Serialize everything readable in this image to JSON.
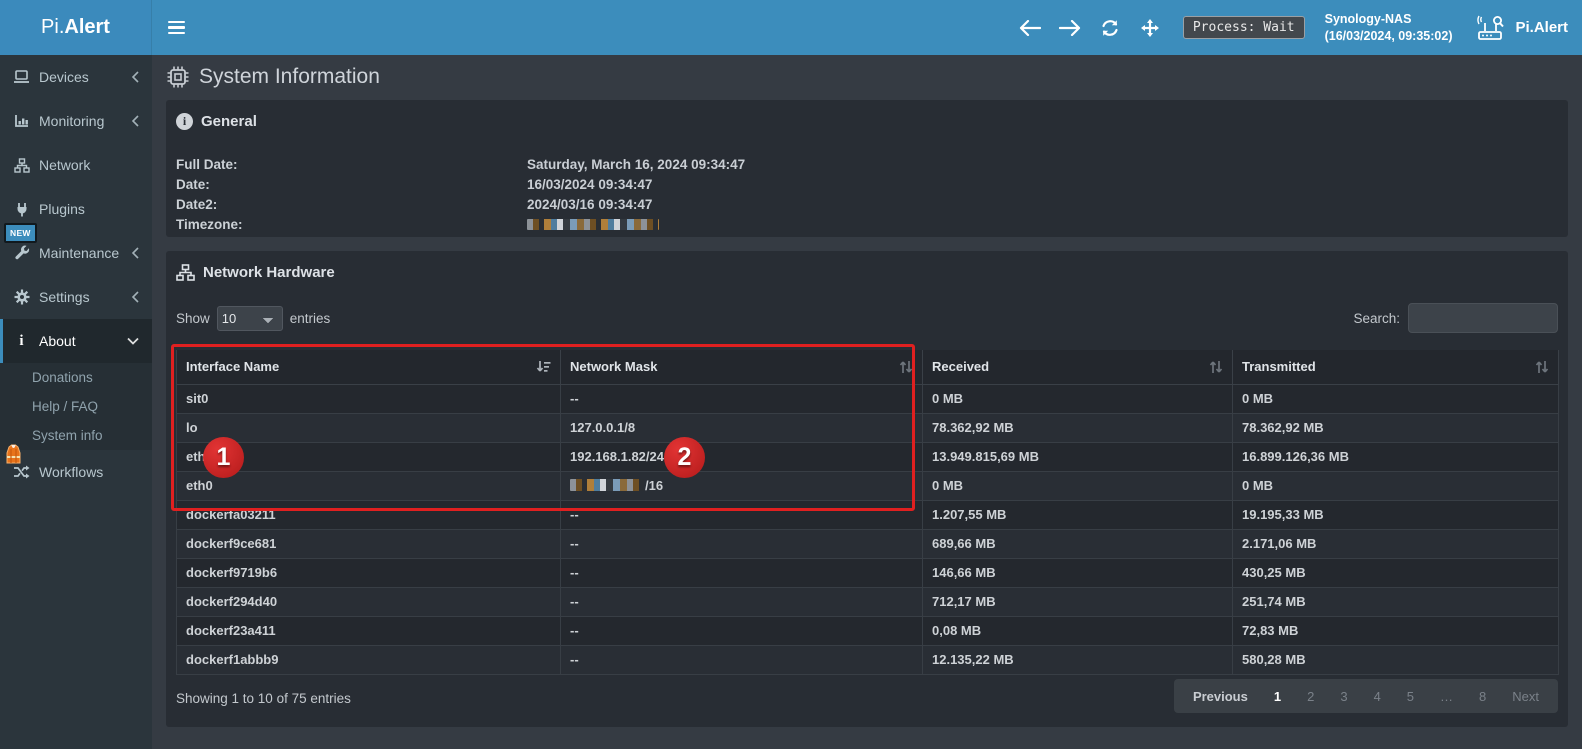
{
  "colors": {
    "accent_blue": "#3c8dbc",
    "annotation_red": "#e02020",
    "sidebar_bg": "#2b353c",
    "panel_bg": "#282d34",
    "page_bg": "#353b43"
  },
  "icons": {
    "hamburger-icon": "three bars",
    "back-icon": "left arrow",
    "forward-icon": "right arrow",
    "refresh-icon": "circular arrows",
    "move-icon": "four-direction arrows",
    "router-scan-icon": "router with antenna and magnifier",
    "devices-icon": "laptop",
    "monitoring-icon": "bar chart",
    "network-icon": "sitemap nodes",
    "plugins-icon": "plug",
    "maintenance-icon": "wrench",
    "settings-icon": "gear",
    "about-icon": "info i",
    "workflows-icon": "shuffle arrows",
    "vest-icon": "orange safety vest",
    "chip-icon": "microchip",
    "info-circle-icon": "circled i",
    "sitemap-icon": "network nodes",
    "sort-desc-icon": "sort amount descending",
    "sort-both-icon": "up down arrows"
  },
  "topbar": {
    "logo_prefix": "Pi.",
    "logo_bold": "Alert",
    "process_badge": "Process: Wait",
    "host_name": "Synology-NAS",
    "host_time": "(16/03/2024, 09:35:02)",
    "brand_right": "Pi.Alert"
  },
  "sidebar": {
    "items": [
      {
        "label": "Devices"
      },
      {
        "label": "Monitoring"
      },
      {
        "label": "Network"
      },
      {
        "label": "Plugins"
      },
      {
        "label": "Maintenance",
        "badge": "NEW"
      },
      {
        "label": "Settings"
      },
      {
        "label": "About"
      },
      {
        "label": "Workflows"
      }
    ],
    "about_submenu": [
      {
        "label": "Donations"
      },
      {
        "label": "Help / FAQ"
      },
      {
        "label": "System info"
      }
    ]
  },
  "page": {
    "title": "System Information"
  },
  "general": {
    "title": "General",
    "rows": [
      {
        "label": "Full Date:",
        "value": "Saturday, March 16, 2024 09:34:47"
      },
      {
        "label": "Date:",
        "value": "16/03/2024 09:34:47"
      },
      {
        "label": "Date2:",
        "value": "2024/03/16 09:34:47"
      },
      {
        "label": "Timezone:",
        "value": "",
        "redacted": true
      }
    ]
  },
  "network_hardware": {
    "title": "Network Hardware",
    "show_label": "Show",
    "page_size": "10",
    "entries_label": "entries",
    "search_label": "Search:",
    "search_value": "",
    "columns": [
      {
        "label": "Interface Name",
        "sort": "desc"
      },
      {
        "label": "Network Mask",
        "sort": "both"
      },
      {
        "label": "Received",
        "sort": "both"
      },
      {
        "label": "Transmitted",
        "sort": "both"
      }
    ],
    "redacted_mask_row": 3,
    "rows": [
      [
        "sit0",
        "--",
        "0 MB",
        "0 MB"
      ],
      [
        "lo",
        "127.0.0.1/8",
        "78.362,92 MB",
        "78.362,92 MB"
      ],
      [
        "eth1",
        "192.168.1.82/24",
        "13.949.815,69 MB",
        "16.899.126,36 MB"
      ],
      [
        "eth0",
        "/16",
        "0 MB",
        "0 MB"
      ],
      [
        "dockerfa03211",
        "--",
        "1.207,55 MB",
        "19.195,33 MB"
      ],
      [
        "dockerf9ce681",
        "--",
        "689,66 MB",
        "2.171,06 MB"
      ],
      [
        "dockerf9719b6",
        "--",
        "146,66 MB",
        "430,25 MB"
      ],
      [
        "dockerf294d40",
        "--",
        "712,17 MB",
        "251,74 MB"
      ],
      [
        "dockerf23a411",
        "--",
        "0,08 MB",
        "72,83 MB"
      ],
      [
        "dockerf1abbb9",
        "--",
        "12.135,22 MB",
        "580,28 MB"
      ]
    ],
    "footer_status": "Showing 1 to 10 of 75 entries",
    "pagination": [
      {
        "label": "Previous",
        "state": "normal"
      },
      {
        "label": "1",
        "state": "active"
      },
      {
        "label": "2",
        "state": "dim"
      },
      {
        "label": "3",
        "state": "dim"
      },
      {
        "label": "4",
        "state": "dim"
      },
      {
        "label": "5",
        "state": "dim"
      },
      {
        "label": "…",
        "state": "dim"
      },
      {
        "label": "8",
        "state": "dim"
      },
      {
        "label": "Next",
        "state": "dim"
      }
    ]
  },
  "annotations": {
    "badge1": "1",
    "badge2": "2"
  }
}
